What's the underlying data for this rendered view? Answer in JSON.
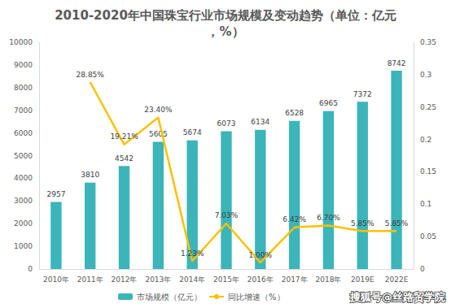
{
  "chart_data": {
    "type": "bar",
    "title": "2010-2020年中国珠宝行业市场规模及变动趋势（单位：亿元，%）",
    "categories": [
      "2010年",
      "2011年",
      "2012年",
      "2013年",
      "2014年",
      "2015年",
      "2016年",
      "2017年",
      "2018年",
      "2019E",
      "2022E"
    ],
    "series": [
      {
        "name": "市场规模（亿元）",
        "type": "bar",
        "color": "#3bb5b9",
        "values": [
          2957,
          3810,
          4542,
          5605,
          5674,
          6073,
          6134,
          6528,
          6965,
          7372,
          8742
        ]
      },
      {
        "name": "同比增速（%）",
        "type": "line",
        "axis": "y2",
        "color": "#ffc000",
        "values": [
          null,
          0.2885,
          0.1921,
          0.234,
          0.0123,
          0.0703,
          0.01,
          0.0642,
          0.067,
          0.0585,
          0.0585
        ],
        "value_labels": [
          null,
          "28.85%",
          "19.21%",
          "23.40%",
          "1.23%",
          "7.03%",
          "1.00%",
          "6.42%",
          "6.70%",
          "5.85%",
          "5.85%"
        ]
      }
    ],
    "ylim": [
      0,
      10000
    ],
    "yticks": [
      0,
      1000,
      2000,
      3000,
      4000,
      5000,
      6000,
      7000,
      8000,
      9000,
      10000
    ],
    "y2lim": [
      0,
      0.35
    ],
    "y2ticks": [
      0,
      0.05,
      0.1,
      0.15,
      0.2,
      0.25,
      0.3,
      0.35
    ],
    "grid": false,
    "legend": "bottom",
    "data_labels": true,
    "annotations": [
      "搜狐号@丝路贸学院"
    ]
  }
}
